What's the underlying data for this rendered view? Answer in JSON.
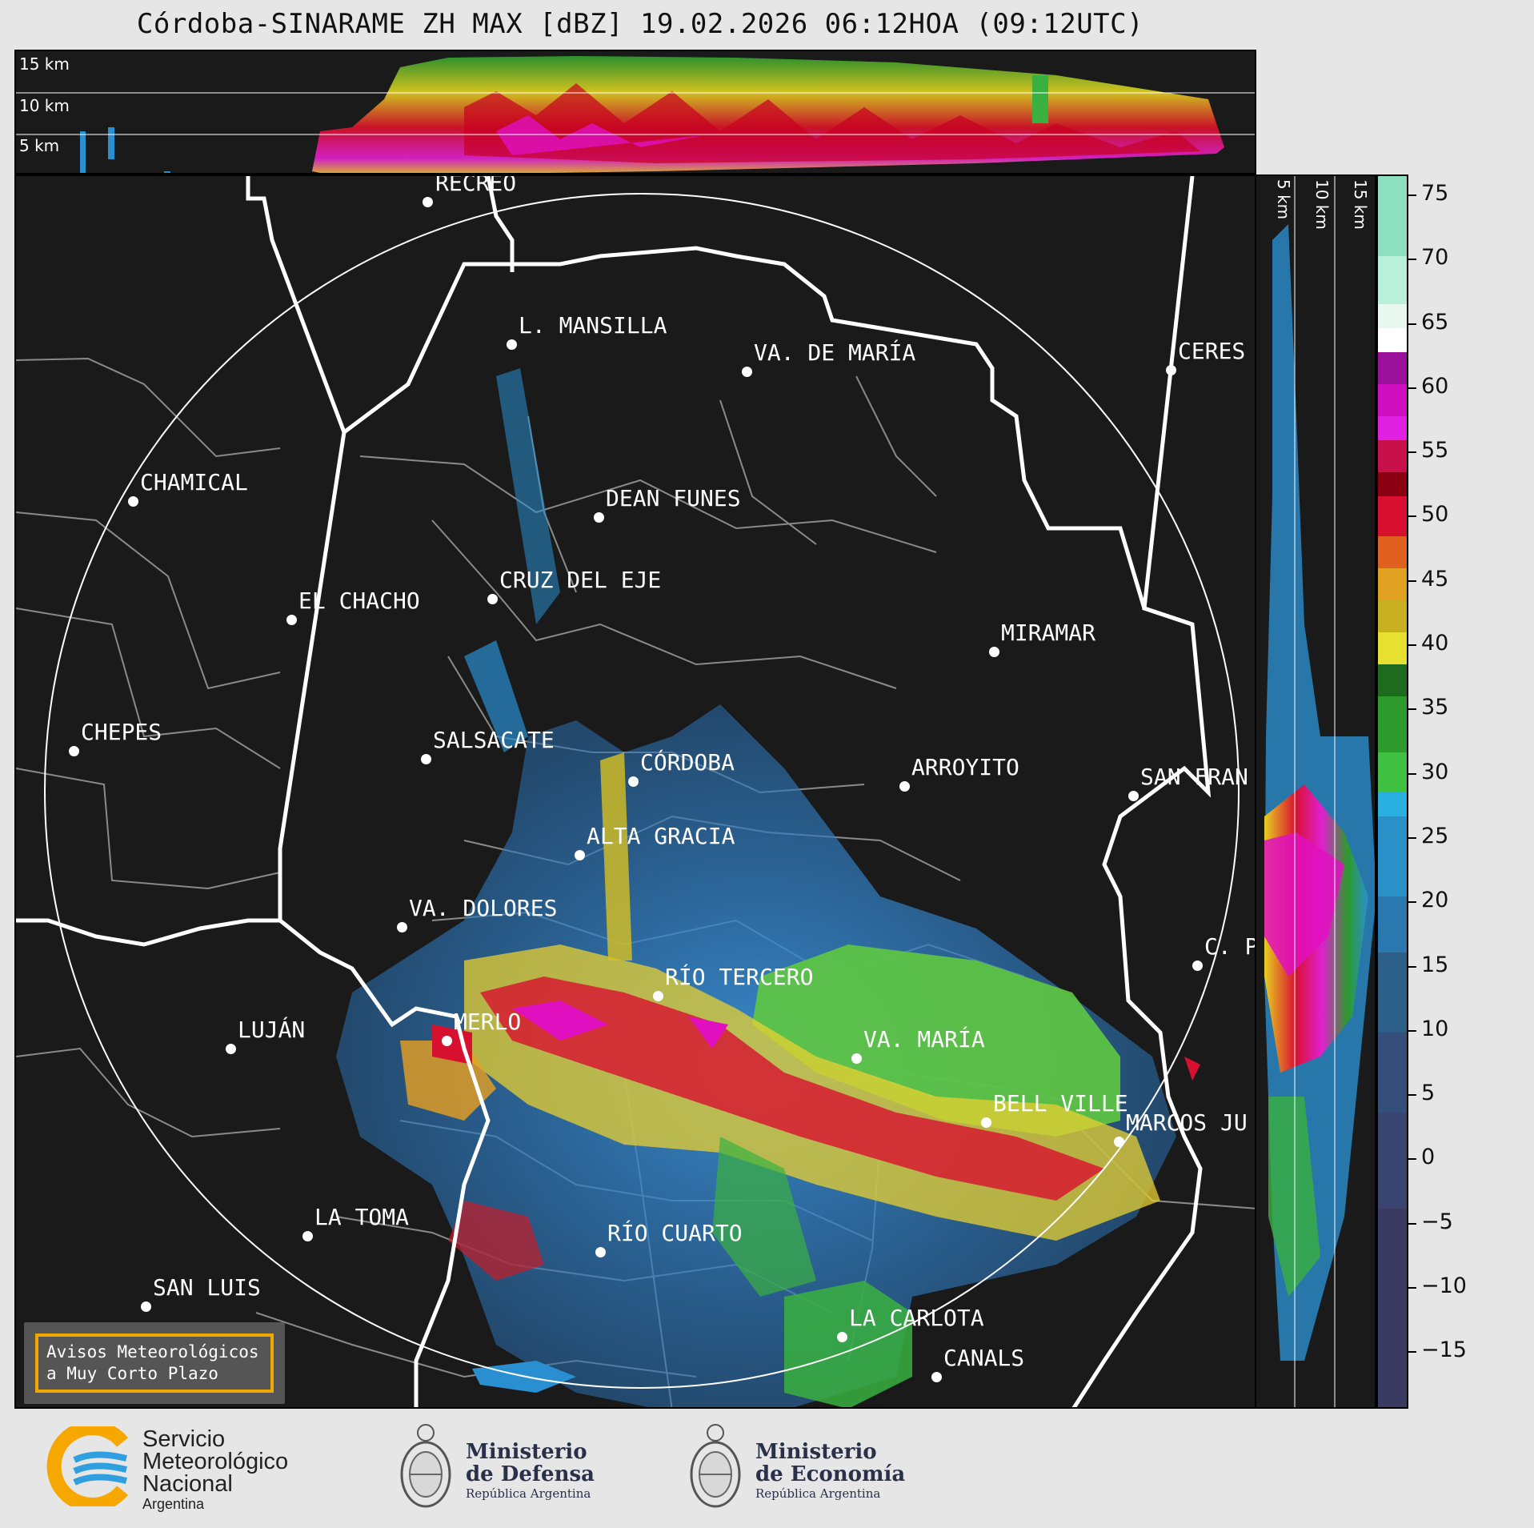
{
  "title": "Córdoba-SINARAME ZH MAX [dBZ] 19.02.2026 06:12HOA (09:12UTC)",
  "height_labels": [
    "15 km",
    "10 km",
    "5 km"
  ],
  "side_labels": [
    "5 km",
    "10 km",
    "15 km"
  ],
  "cities": [
    {
      "name": "RECREO"
    },
    {
      "name": "L. MANSILLA"
    },
    {
      "name": "VA. DE MARÍA"
    },
    {
      "name": "CERES"
    },
    {
      "name": "CHAMICAL"
    },
    {
      "name": "DEAN FUNES"
    },
    {
      "name": "CRUZ DEL EJE"
    },
    {
      "name": "EL CHACHO"
    },
    {
      "name": "MIRAMAR"
    },
    {
      "name": "CHEPES"
    },
    {
      "name": "SALSACATE"
    },
    {
      "name": "CÓRDOBA"
    },
    {
      "name": "ARROYITO"
    },
    {
      "name": "SAN FRAN"
    },
    {
      "name": "ALTA GRACIA"
    },
    {
      "name": "VA. DOLORES"
    },
    {
      "name": "C. P"
    },
    {
      "name": "RÍO TERCERO"
    },
    {
      "name": "MERLO"
    },
    {
      "name": "LUJÁN"
    },
    {
      "name": "VA. MARÍA"
    },
    {
      "name": "BELL VILLE"
    },
    {
      "name": "MARCOS JU"
    },
    {
      "name": "LA TOMA"
    },
    {
      "name": "RÍO CUARTO"
    },
    {
      "name": "SAN LUIS"
    },
    {
      "name": "LA CARLOTA"
    },
    {
      "name": "CANALS"
    }
  ],
  "notice": {
    "line1": "Avisos Meteorológicos",
    "line2": "a Muy Corto Plazo"
  },
  "colorbar": {
    "unit": "dBZ",
    "ticks": [
      "75",
      "70",
      "65",
      "60",
      "55",
      "50",
      "45",
      "40",
      "35",
      "30",
      "25",
      "20",
      "15",
      "10",
      "5",
      "0",
      "−5",
      "−10",
      "−15"
    ]
  },
  "colors": {
    "map_bg": "#1a1a1a",
    "notice_border": "#f0a800",
    "smn_orange": "#f7a800",
    "smn_blue": "#2f9fe0"
  },
  "footer": {
    "smn": {
      "line1": "Servicio",
      "line2": "Meteorológico",
      "line3": "Nacional",
      "line4": "Argentina"
    },
    "defensa": {
      "line1": "Ministerio",
      "line2": "de Defensa",
      "line3": "República Argentina"
    },
    "economia": {
      "line1": "Ministerio",
      "line2": "de Economía",
      "line3": "República Argentina"
    }
  }
}
